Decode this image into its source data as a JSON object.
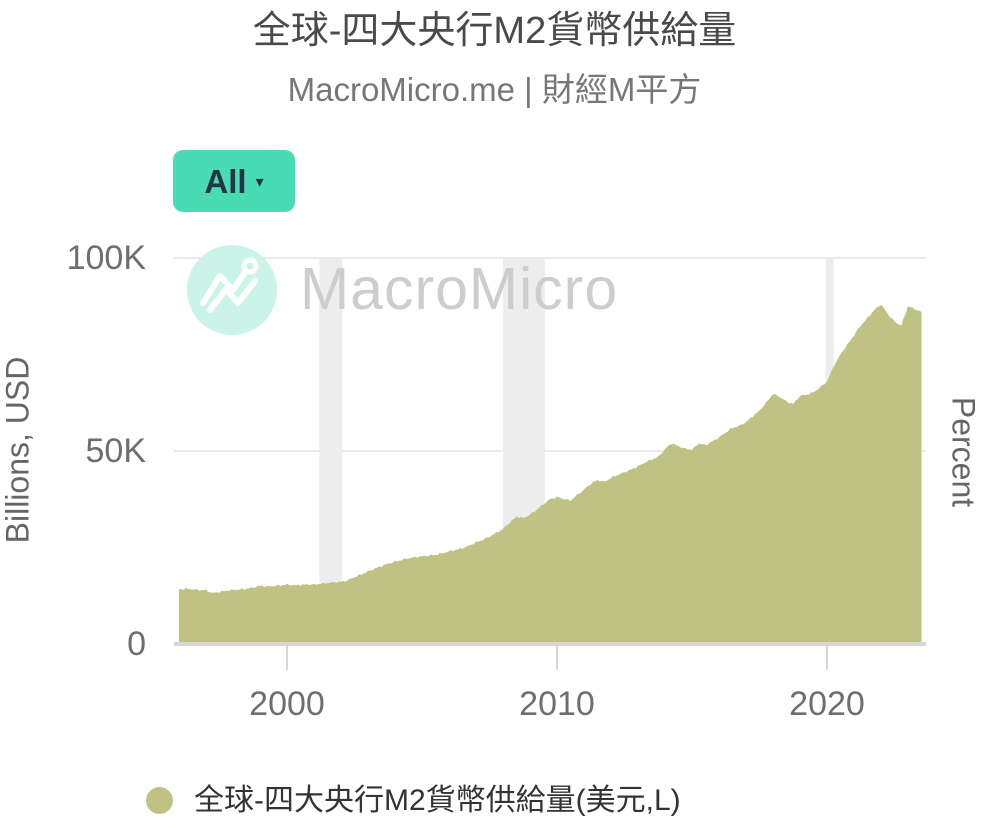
{
  "header": {
    "title": "全球-四大央行M2貨幣供給量",
    "subtitle": "MacroMicro.me | 財經M平方"
  },
  "toolbar": {
    "range_button": {
      "label": "All",
      "caret": "▾"
    }
  },
  "watermark": {
    "brand": "MacroMicro",
    "logo_icon": "macromicro-line-chart-logo"
  },
  "axes": {
    "left_title": "Billions, USD",
    "right_title": "Percent"
  },
  "legend": {
    "position": "bottom-left",
    "items": [
      {
        "label": "全球-四大央行M2貨幣供給量(美元,L)",
        "color": "#c0c283"
      }
    ]
  },
  "colors": {
    "area_fill": "#c0c283",
    "gridline": "#e9e9e9",
    "axis_line": "#d6d6d6",
    "recession_band": "#ededed",
    "button_bg": "#49dbb3",
    "watermark_circle": "#c9f4e7",
    "watermark_text": "#cdcdcd",
    "tick_label": "#6e6e6e"
  },
  "chart_data": {
    "type": "area",
    "title": "全球-四大央行M2貨幣供給量",
    "xlabel": "",
    "ylabel": "Billions, USD",
    "ylabel_right": "Percent",
    "unit": "K = thousand billions USD",
    "xlim": [
      1996.0,
      2023.5
    ],
    "ylim": [
      0,
      100
    ],
    "grid": true,
    "yticks": [
      {
        "value": 0,
        "label": "0"
      },
      {
        "value": 50,
        "label": "50K"
      },
      {
        "value": 100,
        "label": "100K"
      }
    ],
    "xticks": [
      {
        "value": 2000,
        "label": "2000"
      },
      {
        "value": 2010,
        "label": "2010"
      },
      {
        "value": 2020,
        "label": "2020"
      }
    ],
    "recession_bands": [
      [
        2001.2,
        2002.05
      ],
      [
        2008.0,
        2009.55
      ],
      [
        2019.95,
        2020.25
      ]
    ],
    "series": [
      {
        "name": "全球-四大央行M2貨幣供給量(美元,L)",
        "color": "#c0c283",
        "x_start": 1996.0,
        "x_interval_years": 0.25,
        "values": [
          14.2,
          14.3,
          14.2,
          14.0,
          13.9,
          13.2,
          13.5,
          13.8,
          14.0,
          14.1,
          14.3,
          14.6,
          15.1,
          14.9,
          15.0,
          15.2,
          15.4,
          15.2,
          15.3,
          15.4,
          15.4,
          15.6,
          15.8,
          16.0,
          16.1,
          16.5,
          17.3,
          18.0,
          18.8,
          19.5,
          20.2,
          20.8,
          21.3,
          21.8,
          22.2,
          22.5,
          22.7,
          22.9,
          23.1,
          23.5,
          24.0,
          24.4,
          24.8,
          25.5,
          26.3,
          27.0,
          27.8,
          28.8,
          29.8,
          31.5,
          33.0,
          32.6,
          33.5,
          34.8,
          36.2,
          37.6,
          38.0,
          37.6,
          37.2,
          38.6,
          40.0,
          41.5,
          42.5,
          42.0,
          43.0,
          43.8,
          44.5,
          45.2,
          46.0,
          47.0,
          47.8,
          48.5,
          50.5,
          52.0,
          51.2,
          50.6,
          50.3,
          52.0,
          51.5,
          52.5,
          53.5,
          54.8,
          56.0,
          56.5,
          57.5,
          59.0,
          60.5,
          62.5,
          64.8,
          64.0,
          62.8,
          62.2,
          64.3,
          64.6,
          65.2,
          66.5,
          68.0,
          72.0,
          75.0,
          77.5,
          80.0,
          82.5,
          84.5,
          86.5,
          88.0,
          85.5,
          83.5,
          82.5,
          87.5,
          86.8,
          86.0
        ]
      }
    ]
  }
}
